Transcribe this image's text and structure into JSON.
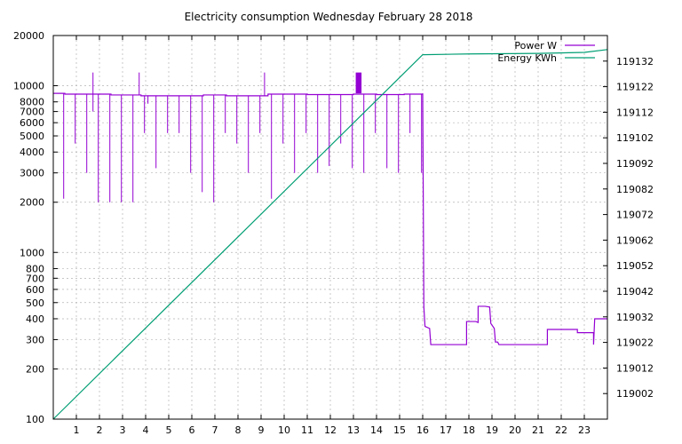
{
  "chart_data": {
    "type": "line",
    "title": "Electricity consumption Wednesday February 28 2018",
    "xlabel": "",
    "ylabel": "",
    "y2label": "",
    "grid": true,
    "legend_position": "top-right",
    "x_ticks": [
      "1",
      "2",
      "3",
      "4",
      "5",
      "6",
      "7",
      "8",
      "9",
      "10",
      "11",
      "12",
      "13",
      "14",
      "15",
      "16",
      "17",
      "18",
      "19",
      "20",
      "21",
      "22",
      "23"
    ],
    "xlim": [
      0,
      24
    ],
    "y_scale": "log",
    "ylim": [
      100,
      20000
    ],
    "y_ticks": [
      "100",
      "200",
      "300",
      "400",
      "500",
      "600",
      "700",
      "800",
      "1000",
      "2000",
      "3000",
      "4000",
      "5000",
      "6000",
      "7000",
      "8000",
      "10000",
      "20000"
    ],
    "y2lim": [
      118992,
      119142
    ],
    "y2_ticks": [
      "119002",
      "119012",
      "119022",
      "119032",
      "119042",
      "119052",
      "119062",
      "119072",
      "119082",
      "119092",
      "119102",
      "119112",
      "119122",
      "119132"
    ],
    "series": [
      {
        "name": "Power W",
        "color": "#9400d3",
        "axis": "y",
        "base_segments": [
          [
            0,
            9000
          ],
          [
            0.5,
            8900
          ],
          [
            2.5,
            8800
          ],
          [
            3.8,
            8700
          ],
          [
            6.5,
            8800
          ],
          [
            7.5,
            8700
          ],
          [
            9.3,
            8900
          ],
          [
            11.0,
            8850
          ],
          [
            13.0,
            8900
          ],
          [
            14.0,
            8850
          ],
          [
            15.2,
            8900
          ],
          [
            16.0,
            8900
          ]
        ],
        "spikes": [
          [
            0.45,
            2100
          ],
          [
            0.95,
            4500
          ],
          [
            1.45,
            3000
          ],
          [
            1.72,
            7000
          ],
          [
            1.95,
            2000
          ],
          [
            2.45,
            2000
          ],
          [
            2.95,
            2000
          ],
          [
            3.45,
            2000
          ],
          [
            3.95,
            5200
          ],
          [
            4.1,
            7800
          ],
          [
            4.45,
            3200
          ],
          [
            4.95,
            5200
          ],
          [
            5.45,
            5200
          ],
          [
            5.95,
            3000
          ],
          [
            6.45,
            2300
          ],
          [
            6.95,
            2000
          ],
          [
            7.45,
            5200
          ],
          [
            7.95,
            4500
          ],
          [
            8.45,
            3000
          ],
          [
            8.95,
            5200
          ],
          [
            9.45,
            2100
          ],
          [
            9.95,
            4500
          ],
          [
            10.45,
            3000
          ],
          [
            10.95,
            5200
          ],
          [
            11.45,
            3000
          ],
          [
            11.95,
            3300
          ],
          [
            12.45,
            4500
          ],
          [
            12.95,
            3200
          ],
          [
            13.45,
            3000
          ],
          [
            13.95,
            5200
          ],
          [
            14.45,
            3200
          ],
          [
            14.95,
            3000
          ],
          [
            15.45,
            5200
          ],
          [
            15.95,
            3000
          ]
        ],
        "peaks": [
          [
            1.72,
            12000
          ],
          [
            3.72,
            12000
          ],
          [
            9.15,
            12000
          ]
        ],
        "burst": [
          13.1,
          13.35,
          12000
        ],
        "tail": [
          [
            16.0,
            9000
          ],
          [
            16.05,
            470
          ],
          [
            16.1,
            360
          ],
          [
            16.3,
            350
          ],
          [
            16.35,
            280
          ],
          [
            17.0,
            280
          ],
          [
            17.9,
            280
          ],
          [
            17.9,
            385
          ],
          [
            18.3,
            385
          ],
          [
            18.4,
            380
          ],
          [
            18.4,
            475
          ],
          [
            18.7,
            475
          ],
          [
            18.9,
            470
          ],
          [
            18.95,
            375
          ],
          [
            19.1,
            350
          ],
          [
            19.15,
            290
          ],
          [
            19.25,
            290
          ],
          [
            19.3,
            280
          ],
          [
            20.0,
            280
          ],
          [
            21.4,
            280
          ],
          [
            21.4,
            345
          ],
          [
            22.7,
            345
          ],
          [
            22.7,
            330
          ],
          [
            23.0,
            330
          ],
          [
            23.4,
            330
          ],
          [
            23.4,
            280
          ],
          [
            23.45,
            400
          ],
          [
            24.0,
            400
          ]
        ]
      },
      {
        "name": "Energy KWh",
        "color": "#009e73",
        "axis": "y2",
        "points": [
          [
            0,
            118992
          ],
          [
            16.0,
            119134.5
          ],
          [
            18.0,
            119134.8
          ],
          [
            21.0,
            119135.0
          ],
          [
            23.0,
            119135.4
          ],
          [
            24.0,
            119136.5
          ]
        ]
      }
    ]
  }
}
